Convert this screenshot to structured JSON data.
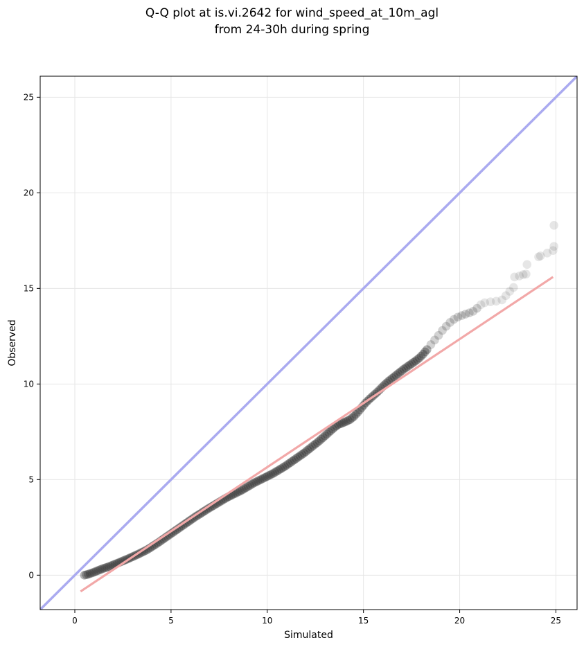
{
  "chart_data": {
    "type": "scatter",
    "title": [
      "Q-Q plot at is.vi.2642 for wind_speed_at_10m_agl",
      "from 24-30h during spring"
    ],
    "xlabel": "Simulated",
    "ylabel": "Observed",
    "xlim": [
      -1.8,
      26.1
    ],
    "ylim": [
      -1.8,
      26.1
    ],
    "xticks": [
      0,
      5,
      10,
      15,
      20,
      25
    ],
    "yticks": [
      0,
      5,
      10,
      15,
      20,
      25
    ],
    "grid": true,
    "colors": {
      "points": "#333333",
      "identity_line": "#aaaaf0",
      "fit_line": "#f2a8a8",
      "fit_line_inner": "#a01010",
      "grid": "#e6e6e6"
    },
    "series": [
      {
        "type": "scatter",
        "points": [
          [
            0.5,
            0.0
          ],
          [
            0.7,
            0.05
          ],
          [
            0.9,
            0.12
          ],
          [
            1.1,
            0.2
          ],
          [
            1.3,
            0.28
          ],
          [
            1.5,
            0.36
          ],
          [
            1.7,
            0.42
          ],
          [
            1.9,
            0.5
          ],
          [
            2.1,
            0.58
          ],
          [
            2.3,
            0.66
          ],
          [
            2.5,
            0.75
          ],
          [
            2.7,
            0.83
          ],
          [
            2.9,
            0.92
          ],
          [
            3.1,
            1.01
          ],
          [
            3.3,
            1.1
          ],
          [
            3.5,
            1.2
          ],
          [
            3.7,
            1.3
          ],
          [
            3.9,
            1.42
          ],
          [
            4.1,
            1.55
          ],
          [
            4.3,
            1.68
          ],
          [
            4.5,
            1.82
          ],
          [
            4.7,
            1.96
          ],
          [
            4.9,
            2.1
          ],
          [
            5.1,
            2.24
          ],
          [
            5.3,
            2.38
          ],
          [
            5.5,
            2.52
          ],
          [
            5.7,
            2.66
          ],
          [
            5.9,
            2.8
          ],
          [
            6.1,
            2.94
          ],
          [
            6.3,
            3.08
          ],
          [
            6.5,
            3.2
          ],
          [
            6.7,
            3.33
          ],
          [
            6.9,
            3.46
          ],
          [
            7.1,
            3.58
          ],
          [
            7.3,
            3.7
          ],
          [
            7.5,
            3.82
          ],
          [
            7.7,
            3.94
          ],
          [
            7.9,
            4.06
          ],
          [
            8.1,
            4.16
          ],
          [
            8.3,
            4.26
          ],
          [
            8.5,
            4.36
          ],
          [
            8.7,
            4.46
          ],
          [
            8.9,
            4.58
          ],
          [
            9.1,
            4.7
          ],
          [
            9.3,
            4.82
          ],
          [
            9.5,
            4.92
          ],
          [
            9.7,
            5.02
          ],
          [
            9.9,
            5.12
          ],
          [
            10.1,
            5.22
          ],
          [
            10.3,
            5.32
          ],
          [
            10.5,
            5.44
          ],
          [
            10.7,
            5.56
          ],
          [
            10.9,
            5.68
          ],
          [
            11.1,
            5.82
          ],
          [
            11.3,
            5.96
          ],
          [
            11.5,
            6.1
          ],
          [
            11.7,
            6.24
          ],
          [
            11.9,
            6.38
          ],
          [
            12.1,
            6.54
          ],
          [
            12.3,
            6.7
          ],
          [
            12.5,
            6.86
          ],
          [
            12.7,
            7.02
          ],
          [
            12.9,
            7.2
          ],
          [
            13.1,
            7.38
          ],
          [
            13.3,
            7.56
          ],
          [
            13.5,
            7.74
          ],
          [
            13.7,
            7.88
          ],
          [
            13.9,
            7.96
          ],
          [
            14.1,
            8.04
          ],
          [
            14.3,
            8.14
          ],
          [
            14.5,
            8.3
          ],
          [
            14.7,
            8.52
          ],
          [
            14.9,
            8.76
          ],
          [
            15.1,
            9.0
          ],
          [
            15.3,
            9.2
          ],
          [
            15.5,
            9.38
          ],
          [
            15.7,
            9.56
          ],
          [
            15.9,
            9.76
          ],
          [
            16.1,
            9.96
          ],
          [
            16.3,
            10.14
          ],
          [
            16.5,
            10.3
          ],
          [
            16.7,
            10.46
          ],
          [
            16.9,
            10.62
          ],
          [
            17.1,
            10.78
          ],
          [
            17.3,
            10.92
          ],
          [
            17.5,
            11.06
          ],
          [
            17.7,
            11.2
          ],
          [
            17.9,
            11.36
          ],
          [
            18.1,
            11.56
          ],
          [
            18.3,
            11.8
          ],
          [
            18.5,
            12.06
          ],
          [
            18.7,
            12.3
          ],
          [
            18.9,
            12.54
          ],
          [
            19.1,
            12.8
          ],
          [
            19.3,
            13.02
          ],
          [
            19.5,
            13.22
          ],
          [
            19.7,
            13.38
          ],
          [
            19.9,
            13.5
          ],
          [
            20.1,
            13.58
          ],
          [
            20.3,
            13.65
          ],
          [
            20.5,
            13.72
          ],
          [
            20.7,
            13.8
          ],
          [
            20.9,
            13.96
          ],
          [
            21.1,
            14.15
          ],
          [
            21.3,
            14.25
          ],
          [
            21.6,
            14.3
          ],
          [
            21.9,
            14.33
          ],
          [
            22.2,
            14.4
          ],
          [
            22.4,
            14.62
          ],
          [
            22.6,
            14.85
          ],
          [
            22.8,
            15.05
          ],
          [
            22.85,
            15.6
          ],
          [
            23.1,
            15.65
          ],
          [
            23.3,
            15.72
          ],
          [
            23.45,
            15.75
          ],
          [
            23.5,
            16.25
          ],
          [
            24.1,
            16.65
          ],
          [
            24.2,
            16.7
          ],
          [
            24.55,
            16.85
          ],
          [
            24.85,
            16.98
          ],
          [
            24.9,
            17.2
          ],
          [
            24.9,
            18.3
          ]
        ]
      },
      {
        "type": "line",
        "name": "",
        "points": [
          [
            -1.8,
            -1.8
          ],
          [
            26.1,
            26.1
          ]
        ]
      },
      {
        "type": "line",
        "name": "",
        "points": [
          [
            0.3,
            -0.85
          ],
          [
            24.85,
            15.6
          ]
        ]
      }
    ]
  }
}
